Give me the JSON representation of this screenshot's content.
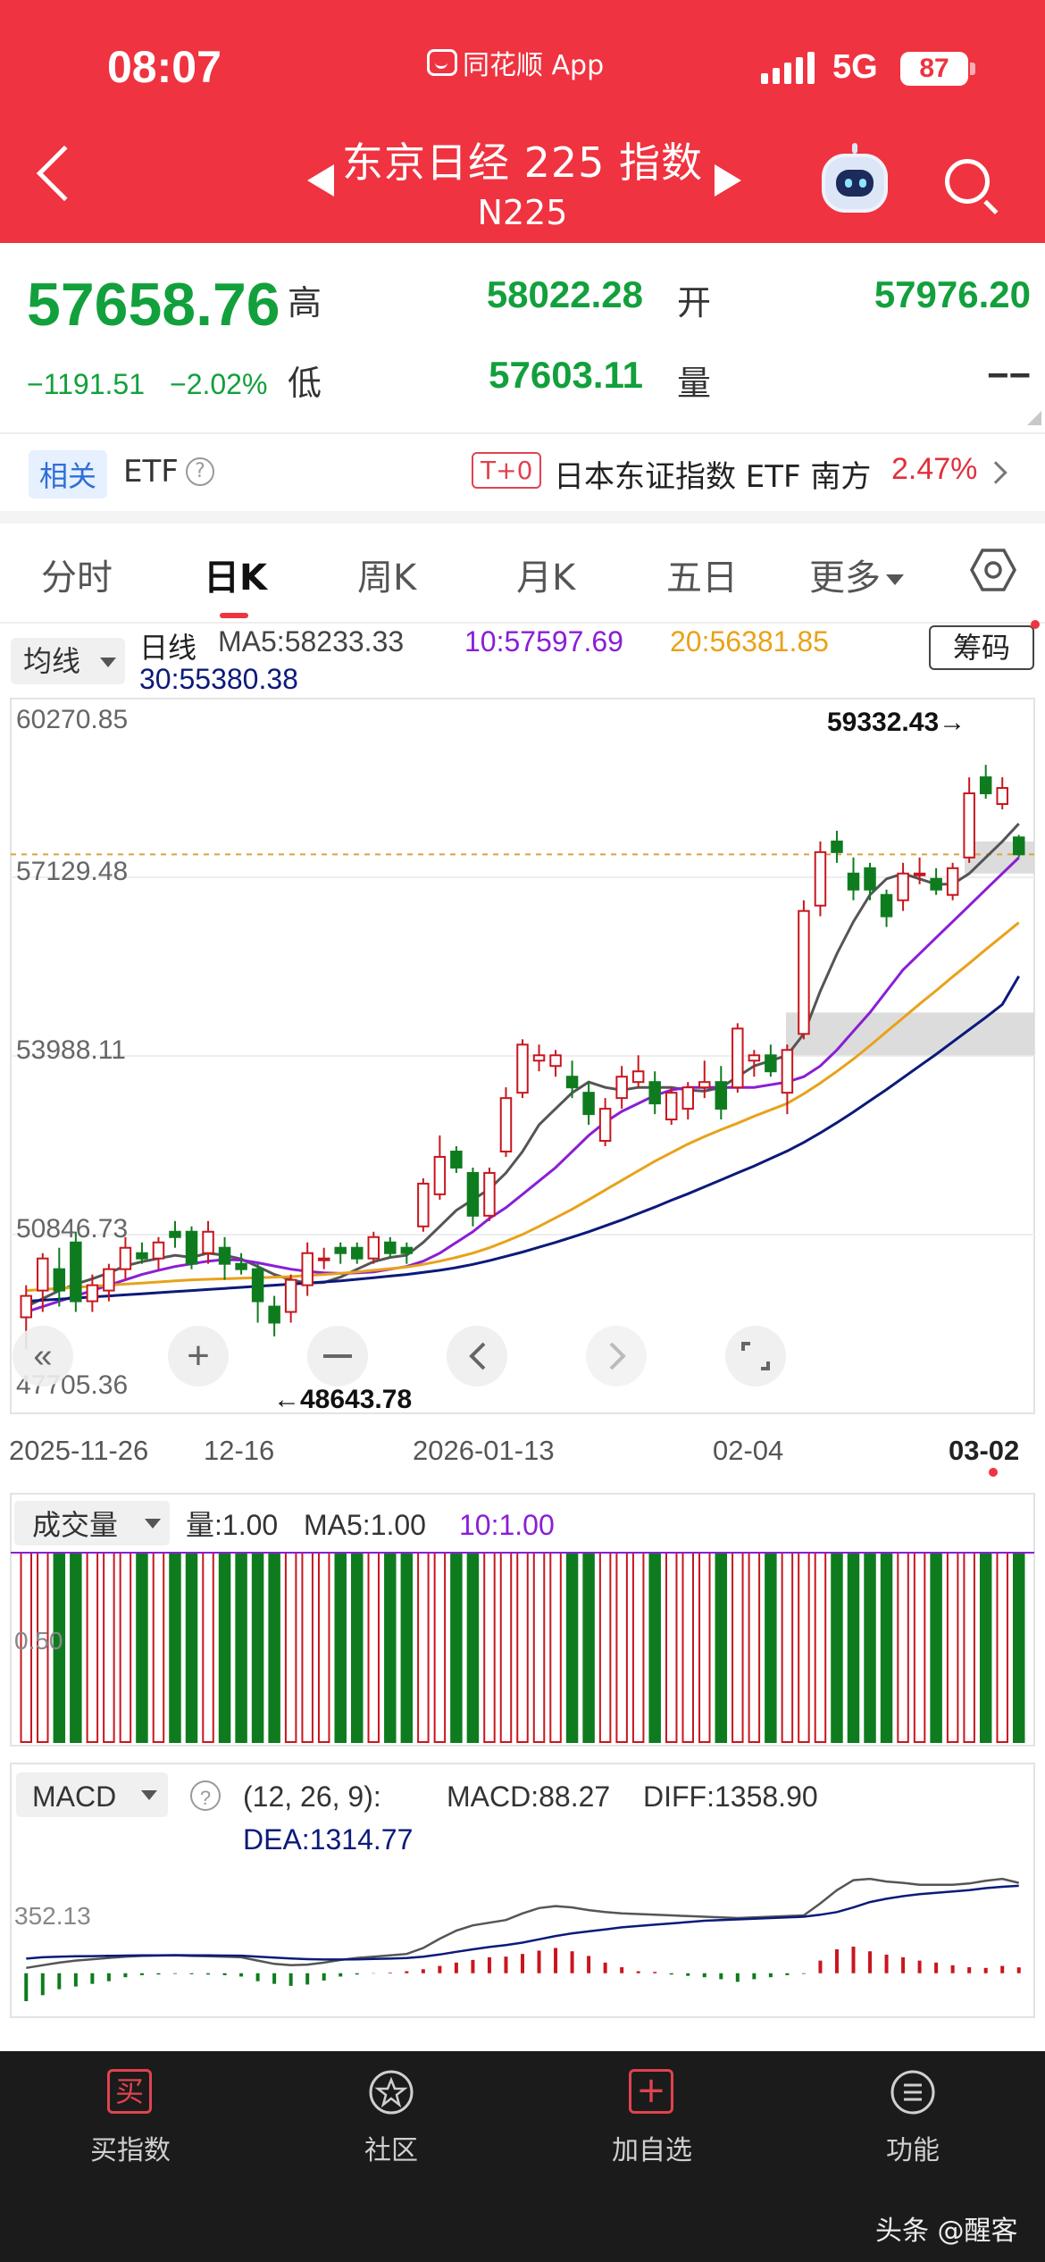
{
  "status_bar": {
    "time": "08:07",
    "app_name": "同花顺 App",
    "network": "5G",
    "battery": "87"
  },
  "header": {
    "title": "东京日经 225 指数",
    "code": "N225"
  },
  "quote": {
    "price": "57658.76",
    "change": "−1191.51",
    "change_pct": "−2.02%",
    "high_label": "高",
    "high": "58022.28",
    "open_label": "开",
    "open": "57976.20",
    "low_label": "低",
    "low": "57603.11",
    "volume_label": "量",
    "volume": "−−"
  },
  "etf": {
    "tag": "相关",
    "label": "ETF",
    "help": "?",
    "t0_tag": "T+0",
    "name": "日本东证指数 ETF 南方",
    "pct": "2.47%"
  },
  "tabs": [
    {
      "label": "分时",
      "active": false
    },
    {
      "label": "日K",
      "active": true
    },
    {
      "label": "周K",
      "active": false
    },
    {
      "label": "月K",
      "active": false
    },
    {
      "label": "五日",
      "active": false
    },
    {
      "label": "更多",
      "active": false
    }
  ],
  "indicators": {
    "ma_button": "均线",
    "period_label": "日线",
    "ma5": "MA5:58233.33",
    "ma10": "10:57597.69",
    "ma20": "20:56381.85",
    "ma30": "30:55380.38",
    "chips_button": "筹码"
  },
  "colors": {
    "up": "#c8161e",
    "down": "#0e7c1e",
    "ma5": "#555555",
    "ma10": "#8a1ed6",
    "ma20": "#e8a21a",
    "ma30": "#0b1a7a",
    "accent": "#ef3340",
    "positive_text": "#12a03c"
  },
  "chart_data": [
    {
      "type": "candlestick",
      "y_ticks": [
        "60270.85",
        "57129.48",
        "53988.11",
        "50846.73",
        "47705.36"
      ],
      "ylim": [
        47705.36,
        60270.85
      ],
      "x_ticks": [
        "2025-11-26",
        "12-16",
        "2026-01-13",
        "02-04",
        "03-02"
      ],
      "max_label": "59332.43→",
      "min_label": "←48643.78",
      "last_price": 57658.76,
      "candles": [
        {
          "o": 49000,
          "h": 49600,
          "l": 48400,
          "c": 49400
        },
        {
          "o": 49500,
          "h": 50200,
          "l": 49100,
          "c": 50100
        },
        {
          "o": 49900,
          "h": 50300,
          "l": 49200,
          "c": 49500
        },
        {
          "o": 50400,
          "h": 50600,
          "l": 49100,
          "c": 49300
        },
        {
          "o": 49300,
          "h": 49800,
          "l": 49100,
          "c": 49600
        },
        {
          "o": 49500,
          "h": 50000,
          "l": 49300,
          "c": 49900
        },
        {
          "o": 49900,
          "h": 50500,
          "l": 49700,
          "c": 50300
        },
        {
          "o": 50200,
          "h": 50400,
          "l": 50000,
          "c": 50100
        },
        {
          "o": 50100,
          "h": 50500,
          "l": 49900,
          "c": 50400
        },
        {
          "o": 50600,
          "h": 50800,
          "l": 50300,
          "c": 50500
        },
        {
          "o": 50600,
          "h": 50700,
          "l": 49900,
          "c": 50000
        },
        {
          "o": 50200,
          "h": 50800,
          "l": 50000,
          "c": 50600
        },
        {
          "o": 50300,
          "h": 50500,
          "l": 49700,
          "c": 50000
        },
        {
          "o": 50000,
          "h": 50200,
          "l": 49800,
          "c": 49900
        },
        {
          "o": 49900,
          "h": 50000,
          "l": 48900,
          "c": 49300
        },
        {
          "o": 49200,
          "h": 49400,
          "l": 48644,
          "c": 48900
        },
        {
          "o": 49100,
          "h": 49800,
          "l": 48900,
          "c": 49700
        },
        {
          "o": 49600,
          "h": 50400,
          "l": 49400,
          "c": 50200
        },
        {
          "o": 50100,
          "h": 50300,
          "l": 49900,
          "c": 50100
        },
        {
          "o": 50300,
          "h": 50400,
          "l": 50000,
          "c": 50200
        },
        {
          "o": 50300,
          "h": 50400,
          "l": 50000,
          "c": 50100
        },
        {
          "o": 50100,
          "h": 50600,
          "l": 50000,
          "c": 50500
        },
        {
          "o": 50400,
          "h": 50500,
          "l": 50100,
          "c": 50200
        },
        {
          "o": 50300,
          "h": 50400,
          "l": 50000,
          "c": 50200
        },
        {
          "o": 50700,
          "h": 51600,
          "l": 50600,
          "c": 51500
        },
        {
          "o": 51300,
          "h": 52400,
          "l": 51200,
          "c": 52000
        },
        {
          "o": 52100,
          "h": 52200,
          "l": 51700,
          "c": 51800
        },
        {
          "o": 51700,
          "h": 51800,
          "l": 50700,
          "c": 50900
        },
        {
          "o": 50900,
          "h": 51800,
          "l": 50800,
          "c": 51700
        },
        {
          "o": 52100,
          "h": 53300,
          "l": 52000,
          "c": 53100
        },
        {
          "o": 53200,
          "h": 54200,
          "l": 53100,
          "c": 54100
        },
        {
          "o": 53800,
          "h": 54100,
          "l": 53600,
          "c": 53900
        },
        {
          "o": 53700,
          "h": 54000,
          "l": 53500,
          "c": 53900
        },
        {
          "o": 53500,
          "h": 53800,
          "l": 53100,
          "c": 53300
        },
        {
          "o": 53200,
          "h": 53400,
          "l": 52600,
          "c": 52800
        },
        {
          "o": 52300,
          "h": 53100,
          "l": 52200,
          "c": 52900
        },
        {
          "o": 53100,
          "h": 53700,
          "l": 52900,
          "c": 53500
        },
        {
          "o": 53400,
          "h": 53900,
          "l": 53300,
          "c": 53600
        },
        {
          "o": 53400,
          "h": 53600,
          "l": 52800,
          "c": 53000
        },
        {
          "o": 52700,
          "h": 53300,
          "l": 52600,
          "c": 53200
        },
        {
          "o": 52900,
          "h": 53400,
          "l": 52700,
          "c": 53300
        },
        {
          "o": 53300,
          "h": 53800,
          "l": 53100,
          "c": 53400
        },
        {
          "o": 53400,
          "h": 53700,
          "l": 52700,
          "c": 52900
        },
        {
          "o": 53300,
          "h": 54500,
          "l": 53200,
          "c": 54400
        },
        {
          "o": 53800,
          "h": 54000,
          "l": 53500,
          "c": 53900
        },
        {
          "o": 53900,
          "h": 54100,
          "l": 53500,
          "c": 53600
        },
        {
          "o": 53200,
          "h": 54100,
          "l": 52800,
          "c": 54000
        },
        {
          "o": 54300,
          "h": 56800,
          "l": 54200,
          "c": 56600
        },
        {
          "o": 56700,
          "h": 57900,
          "l": 56500,
          "c": 57700
        },
        {
          "o": 57900,
          "h": 58100,
          "l": 57500,
          "c": 57700
        },
        {
          "o": 57300,
          "h": 57600,
          "l": 56800,
          "c": 57000
        },
        {
          "o": 57400,
          "h": 57500,
          "l": 56800,
          "c": 57000
        },
        {
          "o": 56900,
          "h": 57000,
          "l": 56300,
          "c": 56500
        },
        {
          "o": 56800,
          "h": 57500,
          "l": 56600,
          "c": 57300
        },
        {
          "o": 57300,
          "h": 57600,
          "l": 57100,
          "c": 57300
        },
        {
          "o": 57200,
          "h": 57400,
          "l": 56900,
          "c": 57000
        },
        {
          "o": 56900,
          "h": 57500,
          "l": 56800,
          "c": 57400
        },
        {
          "o": 57600,
          "h": 59100,
          "l": 57500,
          "c": 58800
        },
        {
          "o": 59100,
          "h": 59332,
          "l": 58700,
          "c": 58800
        },
        {
          "o": 58600,
          "h": 59100,
          "l": 58500,
          "c": 58900
        },
        {
          "o": 57976,
          "h": 58022,
          "l": 57603,
          "c": 57659
        }
      ],
      "ma_lines": [
        {
          "name": "MA5",
          "values": [
            49200,
            49350,
            49500,
            49620,
            49720,
            49830,
            49960,
            50040,
            50100,
            50160,
            50120,
            50200,
            50160,
            50090,
            49950,
            49800,
            49700,
            49640,
            49650,
            49750,
            49900,
            50040,
            50120,
            50160,
            50400,
            50700,
            51000,
            51200,
            51400,
            51700,
            52100,
            52600,
            52900,
            53200,
            53400,
            53300,
            53250,
            53300,
            53300,
            53300,
            53250,
            53230,
            53300,
            53500,
            53700,
            53800,
            53900,
            54300,
            55100,
            55800,
            56400,
            56900,
            57200,
            57300,
            57200,
            57100,
            57100,
            57300,
            57600,
            57900,
            58233
          ]
        },
        {
          "name": "MA10",
          "values": [
            49100,
            49200,
            49300,
            49400,
            49500,
            49600,
            49700,
            49800,
            49880,
            49950,
            50000,
            50050,
            50080,
            50070,
            50020,
            49960,
            49900,
            49860,
            49830,
            49820,
            49830,
            49850,
            49900,
            49950,
            50050,
            50200,
            50400,
            50600,
            50850,
            51050,
            51300,
            51550,
            51800,
            52100,
            52400,
            52650,
            52850,
            53000,
            53150,
            53250,
            53300,
            53300,
            53300,
            53300,
            53300,
            53350,
            53400,
            53500,
            53700,
            54000,
            54350,
            54700,
            55100,
            55500,
            55800,
            56100,
            56400,
            56700,
            57000,
            57300,
            57598
          ]
        },
        {
          "name": "MA20",
          "values": [
            49500,
            49520,
            49540,
            49560,
            49580,
            49600,
            49620,
            49640,
            49660,
            49680,
            49700,
            49710,
            49720,
            49730,
            49740,
            49750,
            49760,
            49780,
            49800,
            49820,
            49850,
            49880,
            49910,
            49940,
            49990,
            50050,
            50120,
            50200,
            50300,
            50420,
            50550,
            50700,
            50860,
            51020,
            51200,
            51380,
            51560,
            51740,
            51920,
            52080,
            52240,
            52380,
            52510,
            52630,
            52760,
            52880,
            53000,
            53180,
            53380,
            53600,
            53830,
            54080,
            54340,
            54600,
            54860,
            55110,
            55370,
            55620,
            55880,
            56130,
            56382
          ]
        },
        {
          "name": "MA30",
          "values": [
            49300,
            49320,
            49340,
            49360,
            49380,
            49400,
            49420,
            49440,
            49460,
            49480,
            49500,
            49520,
            49540,
            49560,
            49580,
            49600,
            49620,
            49640,
            49660,
            49680,
            49710,
            49740,
            49770,
            49800,
            49840,
            49880,
            49930,
            49990,
            50060,
            50140,
            50220,
            50310,
            50400,
            50500,
            50600,
            50710,
            50820,
            50940,
            51060,
            51190,
            51310,
            51440,
            51570,
            51700,
            51830,
            51970,
            52110,
            52270,
            52450,
            52640,
            52840,
            53050,
            53260,
            53480,
            53700,
            53920,
            54150,
            54380,
            54610,
            54850,
            55380
          ]
        }
      ]
    },
    {
      "type": "bar",
      "name": "成交量",
      "header": {
        "label": "成交量",
        "volume": "量:1.00",
        "ma5": "MA5:1.00",
        "ma10": "10:1.00"
      },
      "y_tick": "0.50",
      "value": 1.0
    },
    {
      "type": "bar",
      "name": "MACD",
      "header": {
        "label": "MACD",
        "help": "?",
        "params": "(12, 26, 9):",
        "macd": "MACD:88.27",
        "diff": "DIFF:1358.90",
        "dea": "DEA:1314.77"
      },
      "y_tick": "352.13",
      "ylim": [
        -420,
        1650
      ],
      "macd_values": [
        -420,
        -330,
        -240,
        -200,
        -160,
        -120,
        -60,
        -30,
        -20,
        -10,
        -15,
        -20,
        -30,
        -50,
        -120,
        -160,
        -190,
        -170,
        -110,
        -50,
        -20,
        -5,
        10,
        30,
        60,
        110,
        160,
        200,
        240,
        250,
        290,
        340,
        380,
        330,
        260,
        160,
        90,
        30,
        20,
        -20,
        -40,
        -60,
        -90,
        -130,
        -90,
        -60,
        -30,
        -10,
        190,
        360,
        400,
        330,
        280,
        240,
        190,
        160,
        120,
        90,
        80,
        110,
        88
      ],
      "diff_values": [
        80,
        120,
        160,
        190,
        210,
        230,
        250,
        260,
        265,
        270,
        260,
        255,
        250,
        240,
        190,
        140,
        120,
        130,
        160,
        200,
        230,
        250,
        270,
        290,
        380,
        520,
        640,
        720,
        760,
        800,
        900,
        980,
        1010,
        990,
        950,
        920,
        900,
        890,
        880,
        870,
        860,
        850,
        840,
        830,
        840,
        850,
        860,
        870,
        1050,
        1250,
        1400,
        1420,
        1380,
        1360,
        1330,
        1330,
        1330,
        1350,
        1390,
        1420,
        1359
      ],
      "dea_values": [
        220,
        240,
        250,
        255,
        258,
        262,
        265,
        268,
        270,
        272,
        270,
        268,
        266,
        264,
        250,
        236,
        222,
        212,
        206,
        206,
        209,
        214,
        220,
        228,
        248,
        282,
        322,
        360,
        394,
        424,
        460,
        510,
        560,
        600,
        630,
        660,
        690,
        710,
        730,
        750,
        770,
        790,
        800,
        810,
        820,
        830,
        840,
        850,
        880,
        920,
        990,
        1070,
        1120,
        1160,
        1190,
        1210,
        1230,
        1250,
        1280,
        1300,
        1315
      ]
    }
  ],
  "bottom_nav": [
    {
      "label": "买指数",
      "icon": "买"
    },
    {
      "label": "社区",
      "icon": "star-icon"
    },
    {
      "label": "加自选",
      "icon": "+"
    },
    {
      "label": "功能",
      "icon": "menu-icon"
    }
  ],
  "watermark": "头条 @醒客"
}
